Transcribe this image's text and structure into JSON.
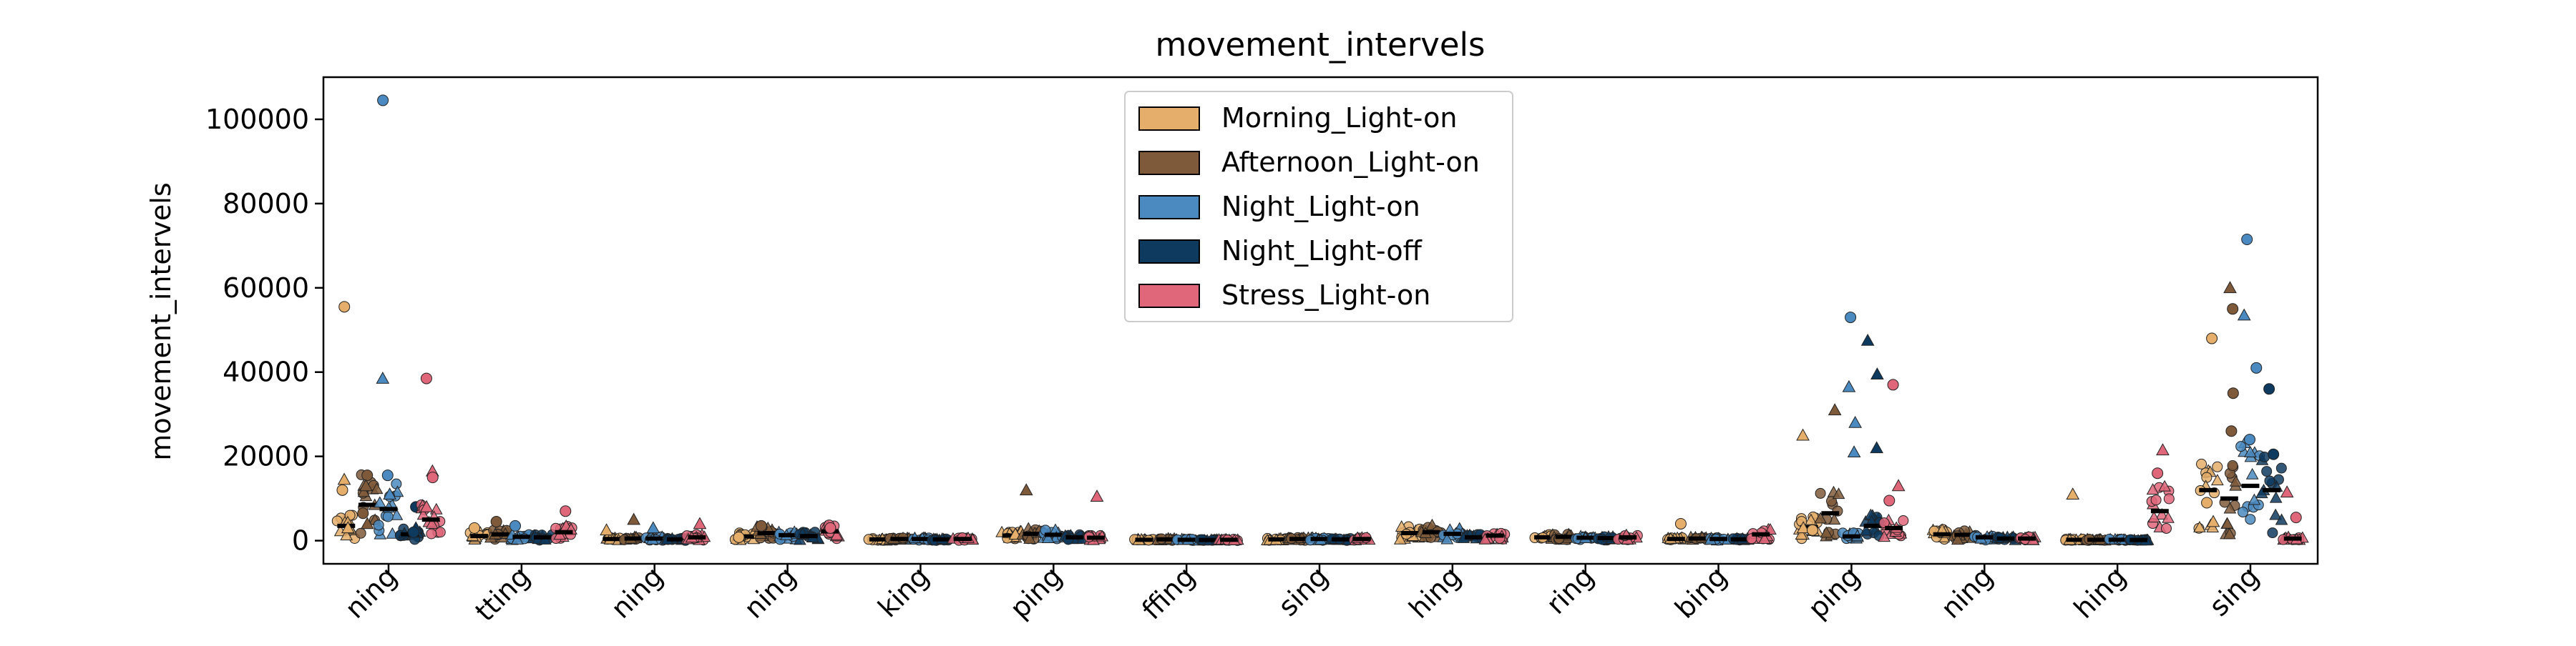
{
  "chart_data": {
    "type": "scatter",
    "title": "movement_intervels",
    "ylabel": "movement_intervels",
    "xlabel": "",
    "ylim": [
      -5500,
      110000
    ],
    "yticks": [
      0,
      20000,
      40000,
      60000,
      80000,
      100000
    ],
    "ytick_labels": [
      "0",
      "20000",
      "40000",
      "60000",
      "80000",
      "100000"
    ],
    "grid": false,
    "legend_position": "upper-center",
    "categories": [
      "ning",
      "tting",
      "ning",
      "ning",
      "king",
      "ping",
      "ffing",
      "sing",
      "hing",
      "ring",
      "bing",
      "ping",
      "ning",
      "hing",
      "sing"
    ],
    "series": [
      {
        "name": "Morning_Light-on",
        "color": "#E5AE6A",
        "medians": [
          3500,
          1100,
          400,
          1000,
          300,
          1200,
          200,
          300,
          1800,
          800,
          400,
          3200,
          1500,
          200,
          12000
        ],
        "outliers": [
          55500,
          14500,
          12000,
          3000,
          3000,
          2500,
          800,
          1500,
          4000,
          3000,
          2500,
          11000,
          9000,
          4500,
          48000,
          25000
        ]
      },
      {
        "name": "Afternoon_Light-on",
        "color": "#7F5A3A",
        "medians": [
          8500,
          1500,
          500,
          1800,
          400,
          1600,
          300,
          400,
          2000,
          900,
          500,
          6500,
          1400,
          200,
          10000
        ],
        "outliers": [
          15500,
          13000,
          6500,
          4000,
          4500,
          5000,
          3500,
          12000,
          55000,
          60000,
          35000,
          31000,
          26000
        ]
      },
      {
        "name": "Night_Light-on",
        "color": "#4A8AC0",
        "medians": [
          7500,
          900,
          500,
          1300,
          400,
          1400,
          200,
          400,
          1600,
          700,
          400,
          1000,
          800,
          200,
          13000
        ],
        "outliers": [
          104500,
          38500,
          15500,
          11000,
          3500,
          3000,
          53000,
          36500,
          24000,
          21000,
          71500,
          53500,
          41000,
          28000
        ]
      },
      {
        "name": "Night_Light-off",
        "color": "#0E3A5F",
        "medians": [
          1500,
          800,
          300,
          1100,
          300,
          800,
          150,
          300,
          800,
          600,
          300,
          3500,
          500,
          150,
          12000
        ],
        "outliers": [
          8000,
          3000,
          2000,
          47500,
          20500,
          39500,
          36000,
          22000
        ]
      },
      {
        "name": "Stress_Light-on",
        "color": "#E0667A",
        "medians": [
          5000,
          2000,
          800,
          2200,
          400,
          700,
          200,
          400,
          1200,
          800,
          1500,
          3000,
          500,
          7000,
          500
        ],
        "outliers": [
          38500,
          16500,
          15000,
          8000,
          7000,
          4000,
          3000,
          10500,
          37000,
          13000,
          9500,
          21500,
          16000,
          11500,
          5500
        ]
      }
    ]
  }
}
